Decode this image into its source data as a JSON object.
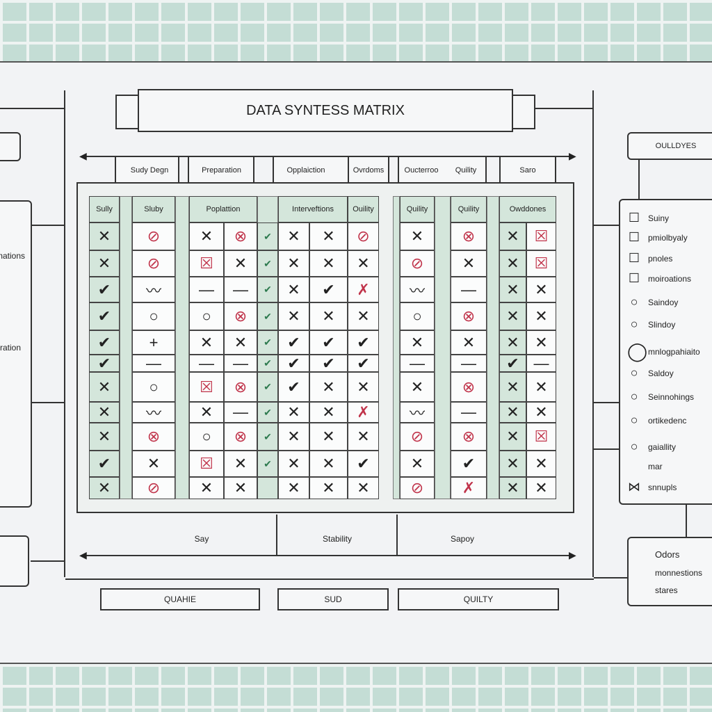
{
  "title": "DATA SYNTESS MATRIX",
  "top_headers": [
    "Sudy Degn",
    "Preparation",
    "Opplaiction",
    "Ovrdoms",
    "Oucterroo",
    "Quility",
    "Saro"
  ],
  "sub_headers": [
    "Sully",
    "Sluby",
    "Poplattion",
    "Interveftions",
    "Ouility",
    "Quility",
    "Quility",
    "Owddones"
  ],
  "cells": [
    [
      "x",
      "cr",
      "x",
      "ox",
      "v",
      "x",
      "x",
      "cr",
      "x",
      "ox",
      "x",
      "sq"
    ],
    [
      "x",
      "cr",
      "sq",
      "x",
      "v",
      "x",
      "x",
      "x",
      "cr",
      "x",
      "x",
      "sq"
    ],
    [
      "v",
      "w",
      "-",
      "-",
      "v",
      "x",
      "v",
      "rx",
      "w",
      "-",
      "x",
      "x"
    ],
    [
      "v",
      "o",
      "o",
      "ox",
      "v",
      "x",
      "x",
      "x",
      "o",
      "ox",
      "x",
      "x"
    ],
    [
      "v",
      "+",
      "x",
      "x",
      "v",
      "v",
      "v",
      "v",
      "x",
      "x",
      "x",
      "x"
    ],
    [
      "v",
      "-",
      "-",
      "-",
      "v",
      "v",
      "v",
      "v",
      "-",
      "-",
      "v",
      "-"
    ],
    [
      "x",
      "o",
      "sq",
      "ox",
      "v",
      "v",
      "x",
      "x",
      "x",
      "ox",
      "x",
      "x"
    ],
    [
      "x",
      "w",
      "x",
      "-",
      "v",
      "x",
      "x",
      "rx",
      "w",
      "-",
      "x",
      "x"
    ],
    [
      "x",
      "ox",
      "o",
      "ox",
      "v",
      "x",
      "x",
      "x",
      "cr",
      "ox",
      "x",
      "sq"
    ],
    [
      "v",
      "x",
      "sq",
      "x",
      "v",
      "x",
      "x",
      "v",
      "x",
      "v",
      "x",
      "x"
    ],
    [
      "x",
      "cr",
      "x",
      "x",
      "",
      "x",
      "x",
      "x",
      "cr",
      "rx",
      "x",
      "x"
    ]
  ],
  "bottom_labels": [
    "Say",
    "Stability",
    "Sapoy"
  ],
  "buttons": [
    "QUAHIE",
    "SUD",
    "QUILTY"
  ],
  "left_labels": [
    "mations",
    "ration"
  ],
  "legend": {
    "title": "OULLDYES",
    "items": [
      {
        "icon": "square",
        "label": "Suiny"
      },
      {
        "icon": "square",
        "label": "pmiolbyaly"
      },
      {
        "icon": "square",
        "label": "pnoles"
      },
      {
        "icon": "square",
        "label": "moiroations"
      },
      {
        "icon": "circle",
        "label": "Saindoy"
      },
      {
        "icon": "circle",
        "label": "Slindoy"
      },
      {
        "icon": "circle-large",
        "label": "mnlogpahiaito"
      },
      {
        "icon": "circle",
        "label": "Saldoy"
      },
      {
        "icon": "circle",
        "label": "Seinnohings"
      },
      {
        "icon": "circle",
        "label": "ortikedenc"
      },
      {
        "icon": "circle",
        "label": "gaiallity"
      },
      {
        "icon": "",
        "label": "mar"
      },
      {
        "icon": "bowtie",
        "label": "snnupls"
      }
    ]
  },
  "notes": [
    "Odors",
    "monnestions",
    "stares"
  ],
  "colors": {
    "green": "#d4e6db",
    "red": "#c0334a",
    "band": "#c4ddd5"
  }
}
